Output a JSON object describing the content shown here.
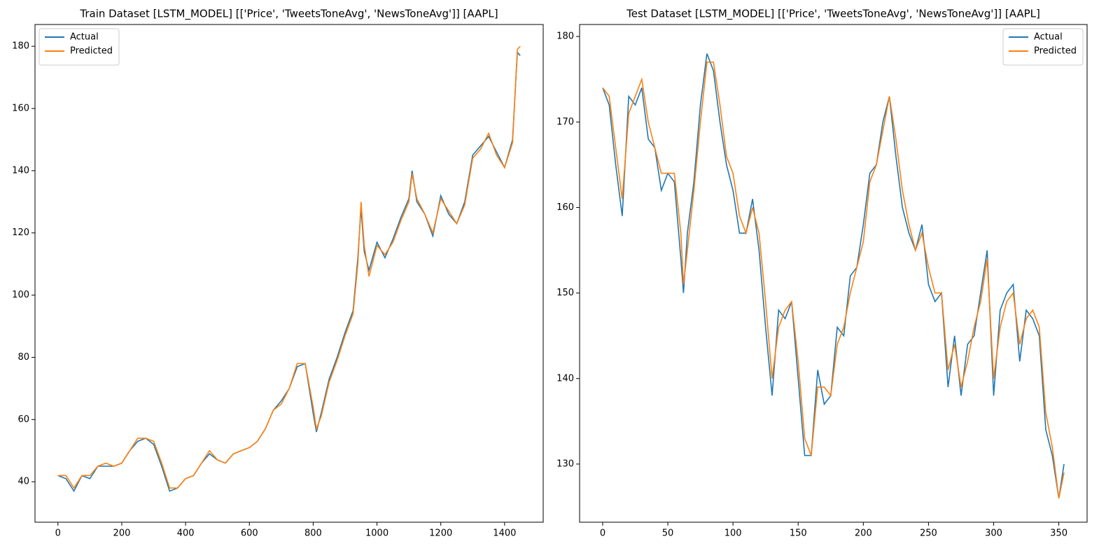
{
  "chart_data": [
    {
      "type": "line",
      "title": "Train Dataset [LSTM_MODEL] [['Price', 'TweetsToneAvg', 'NewsToneAvg']] [AAPL]",
      "x": [
        0,
        25,
        50,
        75,
        100,
        125,
        150,
        175,
        200,
        225,
        250,
        275,
        300,
        325,
        350,
        375,
        400,
        425,
        450,
        475,
        500,
        525,
        550,
        575,
        600,
        625,
        650,
        675,
        700,
        725,
        750,
        775,
        800,
        810,
        825,
        850,
        875,
        900,
        925,
        940,
        950,
        960,
        975,
        1000,
        1025,
        1050,
        1075,
        1100,
        1110,
        1125,
        1150,
        1175,
        1200,
        1225,
        1250,
        1275,
        1300,
        1325,
        1350,
        1375,
        1400,
        1425,
        1440,
        1449
      ],
      "series": [
        {
          "name": "Actual",
          "color": "#1f77b4",
          "values": [
            42,
            41,
            37,
            42,
            41,
            45,
            45,
            45,
            46,
            50,
            53,
            54,
            52,
            45,
            37,
            38,
            41,
            42,
            46,
            49,
            47,
            46,
            49,
            50,
            51,
            53,
            57,
            63,
            66,
            70,
            77,
            78,
            62,
            56,
            62,
            73,
            80,
            88,
            95,
            112,
            128,
            114,
            108,
            117,
            112,
            118,
            125,
            131,
            140,
            130,
            126,
            119,
            132,
            126,
            123,
            130,
            145,
            148,
            151,
            146,
            141,
            150,
            178,
            177
          ]
        },
        {
          "name": "Predicted",
          "color": "#ff7f0e",
          "values": [
            42,
            42,
            38,
            42,
            42,
            45,
            46,
            45,
            46,
            50,
            54,
            54,
            53,
            46,
            38,
            38,
            41,
            42,
            46,
            50,
            47,
            46,
            49,
            50,
            51,
            53,
            57,
            63,
            65,
            70,
            78,
            78,
            64,
            57,
            61,
            72,
            79,
            87,
            94,
            110,
            130,
            116,
            106,
            116,
            113,
            117,
            124,
            130,
            139,
            131,
            126,
            120,
            131,
            127,
            123,
            129,
            144,
            147,
            152,
            145,
            141,
            149,
            179,
            180
          ]
        }
      ],
      "xlim": [
        -72,
        1521
      ],
      "ylim": [
        27,
        187
      ],
      "xticks": [
        0,
        200,
        400,
        600,
        800,
        1000,
        1200,
        1400
      ],
      "yticks": [
        40,
        60,
        80,
        100,
        120,
        140,
        160,
        180
      ],
      "legend": "upper left"
    },
    {
      "type": "line",
      "title": "Test Dataset [LSTM_MODEL] [['Price', 'TweetsToneAvg', 'NewsToneAvg']] [AAPL]",
      "x": [
        0,
        5,
        10,
        15,
        20,
        25,
        30,
        35,
        40,
        45,
        50,
        55,
        60,
        62,
        65,
        70,
        75,
        80,
        85,
        90,
        95,
        100,
        105,
        110,
        115,
        120,
        125,
        130,
        135,
        140,
        145,
        150,
        155,
        160,
        165,
        170,
        175,
        180,
        185,
        190,
        195,
        200,
        205,
        210,
        215,
        220,
        225,
        230,
        235,
        240,
        245,
        250,
        255,
        260,
        265,
        270,
        275,
        280,
        285,
        290,
        295,
        300,
        305,
        310,
        315,
        320,
        325,
        330,
        335,
        340,
        345,
        350,
        354
      ],
      "series": [
        {
          "name": "Actual",
          "color": "#1f77b4",
          "values": [
            174,
            172,
            165,
            159,
            173,
            172,
            174,
            168,
            167,
            162,
            164,
            163,
            154,
            150,
            157,
            163,
            172,
            178,
            176,
            170,
            165,
            162,
            157,
            157,
            161,
            155,
            146,
            138,
            148,
            147,
            149,
            140,
            131,
            131,
            141,
            137,
            138,
            146,
            145,
            152,
            153,
            158,
            164,
            165,
            170,
            173,
            166,
            160,
            157,
            155,
            158,
            151,
            149,
            150,
            139,
            145,
            138,
            144,
            145,
            150,
            155,
            138,
            148,
            150,
            151,
            142,
            148,
            147,
            145,
            134,
            131,
            126,
            130
          ]
        },
        {
          "name": "Predicted",
          "color": "#ff7f0e",
          "values": [
            174,
            173,
            167,
            161,
            171,
            173,
            175,
            170,
            167,
            164,
            164,
            164,
            157,
            151,
            155,
            162,
            170,
            177,
            177,
            172,
            166,
            164,
            159,
            157,
            160,
            157,
            149,
            140,
            146,
            148,
            149,
            142,
            133,
            131,
            139,
            139,
            138,
            144,
            146,
            150,
            153,
            156,
            163,
            165,
            169,
            173,
            168,
            162,
            158,
            155,
            157,
            153,
            150,
            150,
            141,
            144,
            139,
            142,
            146,
            149,
            154,
            140,
            146,
            149,
            150,
            144,
            147,
            148,
            146,
            136,
            132,
            126,
            129
          ]
        }
      ],
      "xlim": [
        -17.7,
        371.7
      ],
      "ylim": [
        123.2,
        181.4
      ],
      "xticks": [
        0,
        50,
        100,
        150,
        200,
        250,
        300,
        350
      ],
      "yticks": [
        130,
        140,
        150,
        160,
        170,
        180
      ],
      "legend": "upper right"
    }
  ]
}
